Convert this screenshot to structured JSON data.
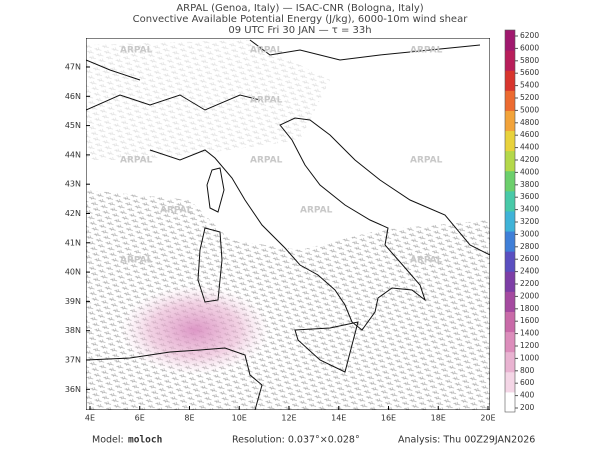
{
  "header": {
    "lines": [
      "ARPAL (Genoa, Italy)  —  ISAC-CNR (Bologna, Italy)",
      "Convective Available Potential Energy (J/kg), 6000-10m wind shear",
      "09 UTC Fri 30 JAN  —  τ = 33h"
    ]
  },
  "map": {
    "lat_labels": [
      "47N",
      "46N",
      "45N",
      "44N",
      "43N",
      "42N",
      "41N",
      "40N",
      "39N",
      "38N",
      "37N",
      "36N"
    ],
    "lon_labels": [
      "4E",
      "6E",
      "8E",
      "10E",
      "12E",
      "14E",
      "16E",
      "18E",
      "20E"
    ],
    "watermark": "ARPAL"
  },
  "colorbar": {
    "labels": [
      200,
      400,
      600,
      800,
      1000,
      1200,
      1400,
      1600,
      1800,
      2000,
      2200,
      2400,
      2600,
      2800,
      3000,
      3200,
      3400,
      3600,
      3800,
      4000,
      4200,
      4400,
      4600,
      4800,
      5000,
      5200,
      5400,
      5600,
      5800,
      6000,
      6200
    ],
    "colors": [
      "#ffffff",
      "#f4d6e6",
      "#e9b3d1",
      "#dc8dbb",
      "#c96aa8",
      "#a54aa0",
      "#7d3ea6",
      "#5a4fc0",
      "#3f7fd8",
      "#3fb3d8",
      "#48c9a8",
      "#6ccf6c",
      "#b4d84a",
      "#e8d23c",
      "#f2a33a",
      "#ec6a30",
      "#d8352d",
      "#b81e5a",
      "#a0186e"
    ]
  },
  "footer": {
    "model_label": "Model:",
    "model": "moloch",
    "resolution": "Resolution: 0.037°×0.028°",
    "analysis": "Analysis: Thu 00Z29JAN2026"
  }
}
